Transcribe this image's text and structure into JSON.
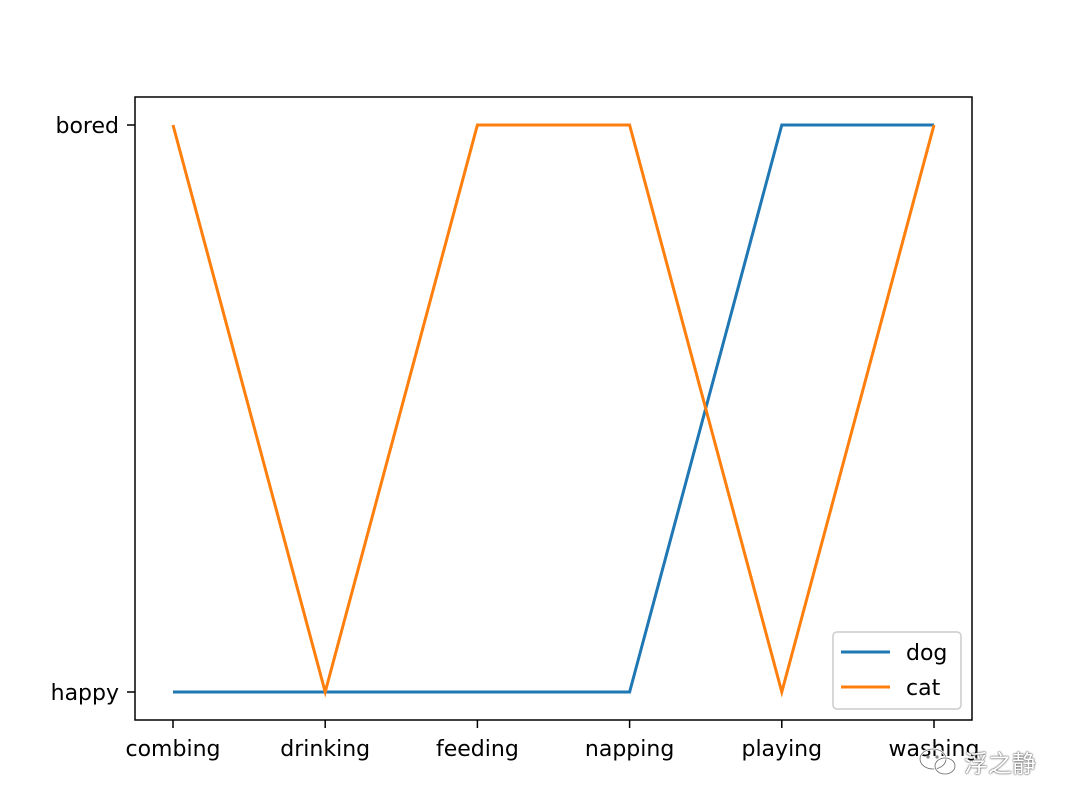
{
  "chart_data": {
    "type": "line",
    "categories": [
      "combing",
      "drinking",
      "feeding",
      "napping",
      "playing",
      "washing"
    ],
    "y_categories": [
      "happy",
      "bored"
    ],
    "series": [
      {
        "name": "dog",
        "color": "#1f77b4",
        "values": [
          "happy",
          "happy",
          "happy",
          "happy",
          "bored",
          "bored"
        ]
      },
      {
        "name": "cat",
        "color": "#ff7f0e",
        "values": [
          "bored",
          "happy",
          "bored",
          "bored",
          "happy",
          "bored"
        ]
      }
    ],
    "title": "",
    "xlabel": "",
    "ylabel": "",
    "grid": false,
    "legend_position": "lower-right"
  },
  "watermark": {
    "text": "浮之静",
    "icon": "wechat-icon"
  }
}
